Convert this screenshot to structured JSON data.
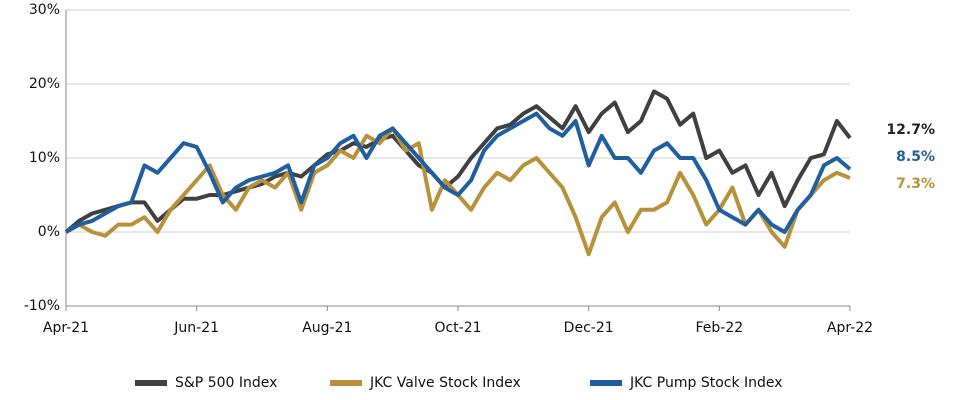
{
  "chart_data": {
    "type": "line",
    "categories": [
      "Apr-21",
      null,
      null,
      null,
      null,
      null,
      null,
      null,
      null,
      null,
      "Jun-21",
      null,
      null,
      null,
      null,
      null,
      null,
      null,
      null,
      null,
      "Aug-21",
      null,
      null,
      null,
      null,
      null,
      null,
      null,
      null,
      null,
      "Oct-21",
      null,
      null,
      null,
      null,
      null,
      null,
      null,
      null,
      null,
      "Dec-21",
      null,
      null,
      null,
      null,
      null,
      null,
      null,
      null,
      null,
      "Feb-22",
      null,
      null,
      null,
      null,
      null,
      null,
      null,
      null,
      null,
      "Apr-22"
    ],
    "series": [
      {
        "name": "S&P 500 Index",
        "color": "#404040",
        "end_label": "12.7%",
        "values": [
          0,
          1.5,
          2.5,
          3,
          3.5,
          4,
          4,
          1.5,
          3,
          4.5,
          4.5,
          5,
          5,
          5.5,
          6,
          6.5,
          7.5,
          8,
          7.5,
          9,
          10.5,
          11,
          12,
          11.5,
          12.5,
          13,
          11,
          9,
          8,
          6,
          7.5,
          10,
          12,
          14,
          14.5,
          16,
          17,
          15.5,
          14,
          17,
          13.5,
          16,
          17.5,
          13.5,
          15,
          19,
          18,
          14.5,
          16,
          10,
          11,
          8,
          9,
          5,
          8,
          3.5,
          7,
          10,
          10.5,
          15,
          12.7
        ]
      },
      {
        "name": "JKC Valve Stock Index",
        "color": "#b8913a",
        "end_label": "7.3%",
        "values": [
          0,
          1,
          0,
          -0.5,
          1,
          1,
          2,
          0,
          3,
          5,
          7,
          9,
          5,
          3,
          6,
          7,
          6,
          8,
          3,
          8,
          9,
          11,
          10,
          13,
          12,
          14,
          11,
          12,
          3,
          7,
          5,
          3,
          6,
          8,
          7,
          9,
          10,
          8,
          6,
          2,
          -3,
          2,
          4,
          0,
          3,
          3,
          4,
          8,
          5,
          1,
          3,
          6,
          1,
          3,
          0,
          -2,
          3,
          5,
          7,
          8,
          7.3
        ]
      },
      {
        "name": "JKC Pump Stock Index",
        "color": "#1f5fa0",
        "end_label": "8.5%",
        "values": [
          0,
          1,
          1.5,
          2.5,
          3.5,
          4,
          9,
          8,
          10,
          12,
          11.5,
          8,
          4,
          6,
          7,
          7.5,
          8,
          9,
          4,
          9,
          10,
          12,
          13,
          10,
          13,
          14,
          12,
          10,
          8,
          6,
          5,
          7,
          11,
          13,
          14,
          15,
          16,
          14,
          13,
          15,
          9,
          13,
          10,
          10,
          8,
          11,
          12,
          10,
          10,
          7,
          3,
          2,
          1,
          3,
          1,
          0,
          3,
          5,
          9,
          10,
          8.5
        ]
      }
    ],
    "ylim": [
      -10,
      30
    ],
    "yticks": [
      {
        "value": -10,
        "label": "-10%"
      },
      {
        "value": 0,
        "label": "0%"
      },
      {
        "value": 10,
        "label": "10%"
      },
      {
        "value": 20,
        "label": "20%"
      },
      {
        "value": 30,
        "label": "30%"
      }
    ],
    "grid": true,
    "legend": "bottom"
  }
}
